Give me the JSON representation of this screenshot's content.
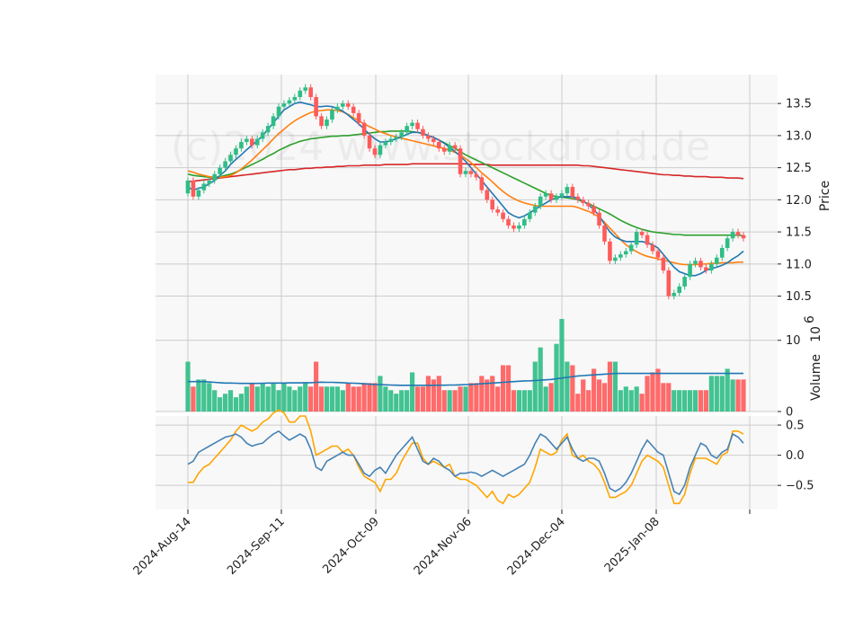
{
  "chart_data": {
    "type": "candlestick",
    "watermark": "(c)2024 www.stockdroid.de",
    "x_tick_labels": [
      "2024-Aug-14",
      "2024-Sep-11",
      "2024-Oct-09",
      "2024-Nov-06",
      "2024-Dec-04",
      "2025-Jan-08"
    ],
    "price_panel": {
      "ylabel": "Price",
      "ylim": [
        10.2,
        13.95
      ],
      "ticks": [
        "10.5",
        "11.0",
        "11.5",
        "12.0",
        "12.5",
        "13.0",
        "13.5"
      ],
      "tick_values": [
        10.5,
        11.0,
        11.5,
        12.0,
        12.5,
        13.0,
        13.5
      ],
      "candles_close": [
        12.3,
        12.05,
        12.15,
        12.25,
        12.3,
        12.4,
        12.5,
        12.6,
        12.7,
        12.8,
        12.9,
        12.95,
        12.85,
        12.95,
        13.05,
        13.15,
        13.3,
        13.45,
        13.5,
        13.55,
        13.6,
        13.7,
        13.75,
        13.6,
        13.3,
        13.15,
        13.25,
        13.4,
        13.45,
        13.5,
        13.45,
        13.35,
        13.2,
        13.0,
        12.8,
        12.7,
        12.85,
        12.9,
        12.95,
        12.98,
        13.05,
        13.15,
        13.2,
        13.1,
        13.0,
        12.95,
        12.9,
        12.8,
        12.75,
        12.85,
        12.8,
        12.4,
        12.45,
        12.4,
        12.35,
        12.15,
        12.0,
        11.85,
        11.8,
        11.7,
        11.6,
        11.55,
        11.6,
        11.7,
        11.8,
        11.9,
        12.05,
        12.1,
        12.0,
        12.05,
        12.1,
        12.2,
        12.05,
        12.0,
        11.95,
        11.9,
        11.8,
        11.6,
        11.35,
        11.05,
        11.1,
        11.15,
        11.2,
        11.3,
        11.5,
        11.45,
        11.3,
        11.2,
        11.1,
        10.9,
        10.5,
        10.55,
        10.65,
        10.8,
        11.0,
        11.05,
        10.95,
        10.9,
        11.0,
        11.1,
        11.25,
        11.4,
        11.5,
        11.45,
        11.4
      ],
      "candles_open": [
        12.1,
        12.3,
        12.05,
        12.15,
        12.25,
        12.3,
        12.4,
        12.5,
        12.6,
        12.7,
        12.8,
        12.9,
        12.95,
        12.85,
        12.95,
        13.05,
        13.15,
        13.3,
        13.45,
        13.5,
        13.55,
        13.6,
        13.7,
        13.75,
        13.6,
        13.3,
        13.15,
        13.25,
        13.4,
        13.45,
        13.5,
        13.45,
        13.35,
        13.2,
        13.0,
        12.8,
        12.7,
        12.85,
        12.9,
        12.95,
        12.98,
        13.05,
        13.15,
        13.2,
        13.1,
        13.0,
        12.95,
        12.9,
        12.8,
        12.75,
        12.85,
        12.8,
        12.4,
        12.45,
        12.4,
        12.35,
        12.15,
        12.0,
        11.85,
        11.8,
        11.7,
        11.6,
        11.55,
        11.6,
        11.7,
        11.8,
        11.9,
        12.05,
        12.1,
        12.0,
        12.05,
        12.1,
        12.2,
        12.05,
        12.0,
        11.95,
        11.9,
        11.8,
        11.6,
        11.35,
        11.05,
        11.1,
        11.15,
        11.2,
        11.3,
        11.5,
        11.45,
        11.3,
        11.2,
        11.1,
        10.9,
        10.5,
        10.55,
        10.65,
        10.8,
        11.0,
        11.05,
        10.95,
        10.9,
        11.0,
        11.1,
        11.25,
        11.4,
        11.5,
        11.45
      ],
      "ma_fast": [
        12.2,
        12.15,
        12.18,
        12.2,
        12.25,
        12.3,
        12.38,
        12.45,
        12.55,
        12.63,
        12.7,
        12.78,
        12.85,
        12.92,
        13.0,
        13.1,
        13.2,
        13.3,
        13.4,
        13.45,
        13.5,
        13.52,
        13.5,
        13.48,
        13.45,
        13.45,
        13.46,
        13.45,
        13.42,
        13.38,
        13.32,
        13.25,
        13.18,
        13.1,
        13.02,
        12.95,
        12.9,
        12.9,
        12.92,
        12.95,
        12.98,
        13.02,
        13.05,
        13.05,
        13.03,
        13.0,
        12.97,
        12.93,
        12.88,
        12.82,
        12.75,
        12.68,
        12.6,
        12.5,
        12.4,
        12.3,
        12.2,
        12.1,
        12.0,
        11.9,
        11.8,
        11.75,
        11.72,
        11.75,
        11.8,
        11.85,
        11.9,
        11.95,
        12.0,
        12.03,
        12.05,
        12.05,
        12.05,
        12.02,
        11.98,
        11.92,
        11.85,
        11.75,
        11.62,
        11.5,
        11.42,
        11.38,
        11.35,
        11.35,
        11.35,
        11.35,
        11.33,
        11.3,
        11.25,
        11.15,
        11.05,
        10.95,
        10.88,
        10.85,
        10.82,
        10.82,
        10.85,
        10.9,
        10.93,
        10.95,
        10.98,
        11.02,
        11.08,
        11.13,
        11.2
      ],
      "ma_mid": [
        12.45,
        12.43,
        12.4,
        12.38,
        12.36,
        12.35,
        12.35,
        12.36,
        12.38,
        12.42,
        12.48,
        12.55,
        12.62,
        12.7,
        12.78,
        12.86,
        12.95,
        13.03,
        13.1,
        13.17,
        13.23,
        13.28,
        13.32,
        13.36,
        13.38,
        13.39,
        13.4,
        13.4,
        13.39,
        13.37,
        13.33,
        13.28,
        13.23,
        13.18,
        13.14,
        13.1,
        13.06,
        13.03,
        13.0,
        12.98,
        12.96,
        12.94,
        12.92,
        12.9,
        12.88,
        12.86,
        12.84,
        12.82,
        12.8,
        12.77,
        12.74,
        12.7,
        12.64,
        12.58,
        12.5,
        12.42,
        12.35,
        12.28,
        12.2,
        12.13,
        12.07,
        12.02,
        11.98,
        11.95,
        11.93,
        11.91,
        11.9,
        11.9,
        11.9,
        11.9,
        11.9,
        11.9,
        11.9,
        11.88,
        11.85,
        11.82,
        11.78,
        11.73,
        11.65,
        11.56,
        11.47,
        11.38,
        11.3,
        11.24,
        11.19,
        11.15,
        11.12,
        11.1,
        11.08,
        11.06,
        11.04,
        11.02,
        11.0,
        10.99,
        10.99,
        10.99,
        11.0,
        11.0,
        11.01,
        11.01,
        11.02,
        11.02,
        11.02,
        11.03,
        11.03
      ],
      "ma_slow": [
        12.4,
        12.38,
        12.37,
        12.36,
        12.35,
        12.35,
        12.36,
        12.38,
        12.4,
        12.43,
        12.47,
        12.51,
        12.55,
        12.59,
        12.63,
        12.68,
        12.72,
        12.77,
        12.81,
        12.85,
        12.88,
        12.91,
        12.93,
        12.95,
        12.96,
        12.97,
        12.98,
        12.99,
        12.99,
        13.0,
        13.0,
        13.01,
        13.02,
        13.03,
        13.04,
        13.05,
        13.06,
        13.06,
        13.07,
        13.07,
        13.07,
        13.07,
        13.06,
        13.05,
        13.03,
        13.0,
        12.97,
        12.93,
        12.89,
        12.84,
        12.8,
        12.75,
        12.7,
        12.66,
        12.62,
        12.58,
        12.54,
        12.5,
        12.46,
        12.42,
        12.38,
        12.34,
        12.3,
        12.26,
        12.22,
        12.18,
        12.14,
        12.1,
        12.07,
        12.05,
        12.04,
        12.03,
        12.02,
        12.0,
        11.97,
        11.94,
        11.9,
        11.86,
        11.82,
        11.78,
        11.73,
        11.68,
        11.64,
        11.6,
        11.57,
        11.54,
        11.52,
        11.5,
        11.49,
        11.48,
        11.47,
        11.46,
        11.46,
        11.45,
        11.45,
        11.45,
        11.45,
        11.45,
        11.45,
        11.45,
        11.45,
        11.45,
        11.45,
        11.45,
        11.44
      ],
      "ma_long": [
        12.28,
        12.29,
        12.3,
        12.31,
        12.32,
        12.33,
        12.34,
        12.35,
        12.36,
        12.37,
        12.38,
        12.39,
        12.4,
        12.41,
        12.42,
        12.43,
        12.44,
        12.45,
        12.46,
        12.47,
        12.47,
        12.48,
        12.49,
        12.49,
        12.5,
        12.5,
        12.51,
        12.51,
        12.52,
        12.52,
        12.53,
        12.53,
        12.53,
        12.54,
        12.54,
        12.54,
        12.54,
        12.55,
        12.55,
        12.55,
        12.55,
        12.55,
        12.56,
        12.56,
        12.56,
        12.56,
        12.56,
        12.56,
        12.56,
        12.56,
        12.56,
        12.56,
        12.56,
        12.55,
        12.55,
        12.55,
        12.55,
        12.54,
        12.54,
        12.54,
        12.54,
        12.54,
        12.54,
        12.54,
        12.54,
        12.54,
        12.54,
        12.54,
        12.54,
        12.54,
        12.54,
        12.54,
        12.54,
        12.54,
        12.53,
        12.53,
        12.52,
        12.51,
        12.5,
        12.49,
        12.48,
        12.47,
        12.46,
        12.45,
        12.44,
        12.43,
        12.42,
        12.41,
        12.4,
        12.39,
        12.39,
        12.38,
        12.38,
        12.37,
        12.37,
        12.36,
        12.36,
        12.36,
        12.35,
        12.35,
        12.35,
        12.34,
        12.34,
        12.34,
        12.33
      ]
    },
    "volume_panel": {
      "ylabel": "Volume",
      "ylabel_exponent": "10",
      "ylabel_exponent_power": "6",
      "ylim": [
        0,
        13.5
      ],
      "ticks": [
        "0",
        "10"
      ],
      "tick_values": [
        0,
        10
      ],
      "values": [
        7,
        3.5,
        4.5,
        4.5,
        4,
        3,
        2,
        2.5,
        3,
        2,
        2.5,
        3.5,
        4,
        3.5,
        4,
        3.5,
        4,
        3,
        4,
        3.5,
        3,
        3.5,
        4,
        3.5,
        7,
        3.5,
        3.5,
        3.5,
        3.5,
        3,
        4,
        3.5,
        3.5,
        4,
        4,
        4,
        5,
        3.5,
        3,
        2.5,
        3,
        3,
        5.5,
        3.5,
        3.5,
        5,
        4.5,
        5,
        3,
        3,
        3,
        3.5,
        3.5,
        4,
        4,
        5,
        4.5,
        5,
        3.5,
        6.5,
        6.5,
        3,
        3,
        3,
        3,
        7,
        9,
        3.5,
        4,
        9.5,
        13,
        7,
        6.5,
        2.5,
        4.5,
        3,
        6,
        4.5,
        4,
        7,
        7,
        3,
        3.5,
        3,
        3.5,
        2.5,
        5,
        5.5,
        6,
        4,
        4,
        3,
        3,
        3,
        3,
        3,
        3,
        3,
        5,
        5,
        5,
        6,
        4.5,
        4.5,
        4.5
      ],
      "ma": [
        4.2,
        4.2,
        4.2,
        4.2,
        4.15,
        4.1,
        4.05,
        4.0,
        4.0,
        3.98,
        3.95,
        3.95,
        3.95,
        3.95,
        3.98,
        4.0,
        4.0,
        4.0,
        4.0,
        4.02,
        4.02,
        4.03,
        4.05,
        4.05,
        4.1,
        4.12,
        4.1,
        4.1,
        4.08,
        4.05,
        4.0,
        3.98,
        3.95,
        3.9,
        3.85,
        3.8,
        3.78,
        3.75,
        3.72,
        3.7,
        3.68,
        3.68,
        3.68,
        3.68,
        3.68,
        3.68,
        3.68,
        3.7,
        3.7,
        3.72,
        3.72,
        3.75,
        3.78,
        3.8,
        3.85,
        3.9,
        3.95,
        4.0,
        4.05,
        4.1,
        4.15,
        4.2,
        4.25,
        4.3,
        4.32,
        4.35,
        4.4,
        4.45,
        4.5,
        4.6,
        4.7,
        4.8,
        4.9,
        5.0,
        5.05,
        5.1,
        5.15,
        5.2,
        5.25,
        5.3,
        5.35,
        5.35,
        5.35,
        5.35,
        5.35,
        5.35,
        5.35,
        5.35,
        5.35,
        5.35,
        5.35,
        5.35,
        5.35,
        5.35,
        5.35,
        5.35,
        5.35,
        5.35,
        5.35,
        5.35,
        5.35,
        5.35,
        5.35,
        5.35,
        5.35
      ]
    },
    "oscillator_panel": {
      "ylim": [
        -0.9,
        0.65
      ],
      "ticks": [
        "0.5",
        "0.0",
        "−0.5"
      ],
      "tick_values": [
        0.5,
        0.0,
        -0.5
      ],
      "line_blue": [
        -0.15,
        -0.1,
        0.05,
        0.1,
        0.15,
        0.2,
        0.25,
        0.3,
        0.32,
        0.35,
        0.3,
        0.2,
        0.15,
        0.18,
        0.2,
        0.28,
        0.35,
        0.4,
        0.32,
        0.25,
        0.3,
        0.35,
        0.3,
        0.1,
        -0.2,
        -0.25,
        -0.1,
        -0.05,
        0.0,
        0.05,
        0.0,
        0.0,
        -0.15,
        -0.3,
        -0.35,
        -0.25,
        -0.2,
        -0.3,
        -0.15,
        0.0,
        0.1,
        0.2,
        0.3,
        0.1,
        -0.1,
        -0.15,
        -0.05,
        -0.1,
        -0.2,
        -0.25,
        -0.35,
        -0.3,
        -0.3,
        -0.28,
        -0.3,
        -0.35,
        -0.3,
        -0.25,
        -0.3,
        -0.35,
        -0.3,
        -0.25,
        -0.2,
        -0.15,
        0.0,
        0.2,
        0.35,
        0.3,
        0.2,
        0.1,
        0.2,
        0.3,
        0.1,
        -0.05,
        -0.1,
        -0.05,
        -0.05,
        -0.1,
        -0.3,
        -0.55,
        -0.6,
        -0.55,
        -0.45,
        -0.3,
        -0.1,
        0.1,
        0.25,
        0.15,
        0.05,
        0.0,
        -0.3,
        -0.6,
        -0.65,
        -0.5,
        -0.2,
        0.0,
        0.2,
        0.15,
        0.0,
        -0.05,
        0.05,
        0.1,
        0.35,
        0.3,
        0.2
      ],
      "line_orange": [
        -0.45,
        -0.45,
        -0.3,
        -0.2,
        -0.15,
        -0.05,
        0.05,
        0.15,
        0.25,
        0.4,
        0.5,
        0.45,
        0.4,
        0.45,
        0.55,
        0.6,
        0.7,
        0.75,
        0.7,
        0.55,
        0.55,
        0.65,
        0.65,
        0.4,
        0.0,
        0.05,
        0.1,
        0.15,
        0.15,
        0.05,
        0.1,
        0.0,
        -0.2,
        -0.35,
        -0.4,
        -0.45,
        -0.6,
        -0.4,
        -0.4,
        -0.3,
        -0.1,
        0.05,
        0.2,
        0.2,
        -0.05,
        -0.15,
        -0.1,
        -0.15,
        -0.2,
        -0.15,
        -0.35,
        -0.4,
        -0.4,
        -0.45,
        -0.5,
        -0.6,
        -0.7,
        -0.6,
        -0.75,
        -0.8,
        -0.65,
        -0.7,
        -0.65,
        -0.55,
        -0.45,
        -0.2,
        0.1,
        0.05,
        0.0,
        0.05,
        0.25,
        0.35,
        0.0,
        -0.05,
        0.0,
        -0.1,
        -0.15,
        -0.25,
        -0.45,
        -0.7,
        -0.7,
        -0.65,
        -0.6,
        -0.5,
        -0.3,
        -0.1,
        0.0,
        -0.05,
        -0.1,
        -0.2,
        -0.5,
        -0.8,
        -0.8,
        -0.65,
        -0.3,
        -0.05,
        -0.05,
        -0.05,
        -0.1,
        -0.15,
        0.0,
        0.05,
        0.4,
        0.4,
        0.35
      ]
    },
    "colors": {
      "up": "#2ebd85",
      "down": "#ff5a5a",
      "ma_fast": "#1f77b4",
      "ma_mid": "#ff7f0e",
      "ma_slow": "#2ca02c",
      "ma_long": "#d62728",
      "volume_ma": "#1f77b4",
      "osc_blue": "#4682b4",
      "osc_orange": "#ffa500",
      "panel_bg": "#f8f8f8",
      "grid": "#cccccc"
    }
  }
}
